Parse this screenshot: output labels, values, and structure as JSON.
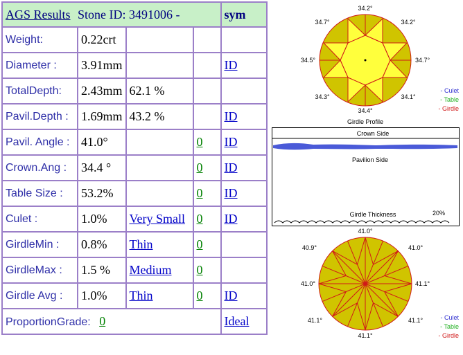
{
  "header": {
    "title": "AGS  Results",
    "stone_label": "Stone ID:  3491006 -",
    "sym": "sym"
  },
  "rows": [
    {
      "label": "Weight:",
      "value": "0.22crt",
      "extra": "",
      "zero": "",
      "id": ""
    },
    {
      "label": "Diameter :",
      "value": "3.91mm",
      "extra": "",
      "zero": "",
      "id": "ID"
    },
    {
      "label": "TotalDepth:",
      "value": "2.43mm",
      "extra": "62.1 %",
      "zero": "",
      "id": ""
    },
    {
      "label": "Pavil.Depth :",
      "value": "1.69mm",
      "extra": "43.2 %",
      "zero": "",
      "id": "ID"
    },
    {
      "label": "Pavil. Angle :",
      "value": "41.0°",
      "extra": "",
      "zero": "0",
      "id": "ID"
    },
    {
      "label": "Crown.Ang :",
      "value": "34.4 °",
      "extra": "",
      "zero": "0",
      "id": "ID"
    },
    {
      "label": "Table Size :",
      "value": "53.2%",
      "extra": "",
      "zero": "0",
      "id": "ID"
    },
    {
      "label": "Culet :",
      "value": "1.0%",
      "extra": "Very Small",
      "zero": "0",
      "id": "ID"
    },
    {
      "label": "GirdleMin :",
      "value": "0.8%",
      "extra": "Thin",
      "zero": "0",
      "id": ""
    },
    {
      "label": "GirdleMax :",
      "value": "1.5 %",
      "extra": "Medium ",
      "zero": "0",
      "id": ""
    },
    {
      "label": "Girdle Avg :",
      "value": "1.0%",
      "extra": "Thin ",
      "zero": "0 ",
      "id": "ID "
    }
  ],
  "proportion": {
    "label": "ProportionGrade:",
    "zero": "0",
    "grade": "Ideal "
  },
  "crown_diagram": {
    "angles": {
      "top": "34.2°",
      "top_left": "34.7°",
      "top_right": "34.2°",
      "left": "34.5°",
      "right": "34.7°",
      "bottom_left": "34.3°",
      "bottom_right": "34.1°",
      "bottom": "34.4°"
    },
    "caption": "Girdle Profile",
    "legend": [
      "- Culet",
      "- Table",
      "- Girdle"
    ]
  },
  "girdle_diagram": {
    "crown_label": "Crown Side",
    "pavilion_label": "Pavilion Side",
    "thickness_label": "Girdle Thickness",
    "percent": "20%"
  },
  "pavilion_diagram": {
    "angles": {
      "top": "41.0°",
      "top_left": "40.9°",
      "top_right": "41.0°",
      "left": "41.0°",
      "right": "41.1°",
      "bottom_left": "41.1°",
      "bottom_right": "41.1°",
      "bottom": "41.1°"
    },
    "legend": [
      "- Culet",
      "- Table",
      "- Girdle"
    ]
  },
  "colors": {
    "header_bg": "#c8f0c8",
    "border": "#9b7fc8",
    "label_text": "#2f2fa8",
    "link": "#0000c8",
    "zero_link": "#008000",
    "crown_fill": "#d0c400",
    "table_fill": "#ffff3c",
    "facet_line": "#d01818",
    "girdle_blue": "#4a5ad8"
  }
}
